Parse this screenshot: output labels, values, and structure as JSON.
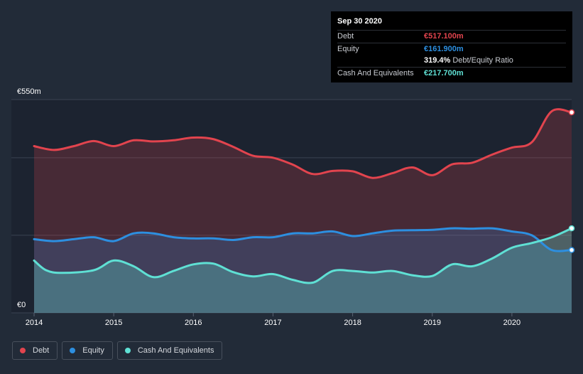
{
  "tooltip": {
    "date": "Sep 30 2020",
    "debt_label": "Debt",
    "debt_value": "€517.100m",
    "equity_label": "Equity",
    "equity_value": "€161.900m",
    "ratio_value": "319.4%",
    "ratio_label": "Debt/Equity Ratio",
    "cash_label": "Cash And Equivalents",
    "cash_value": "€217.700m"
  },
  "legend": [
    {
      "label": "Debt",
      "color": "#e2444e"
    },
    {
      "label": "Equity",
      "color": "#2d8fe0"
    },
    {
      "label": "Cash And Equivalents",
      "color": "#5fe0d4"
    }
  ],
  "chart_data": {
    "type": "area",
    "y_top_label": "€550m",
    "y_bottom_label": "€0",
    "ylim": [
      0,
      550
    ],
    "xlim": [
      2014.0,
      2020.75
    ],
    "x_ticks": [
      "2014",
      "2015",
      "2016",
      "2017",
      "2018",
      "2019",
      "2020"
    ],
    "grid": "horizontal",
    "colors": {
      "debt": "#e2444e",
      "equity": "#2d8fe0",
      "cash": "#5fe0d4"
    },
    "series": [
      {
        "name": "Debt",
        "points": [
          [
            2014.0,
            430
          ],
          [
            2014.25,
            420
          ],
          [
            2014.5,
            430
          ],
          [
            2014.75,
            443
          ],
          [
            2015.0,
            430
          ],
          [
            2015.25,
            445
          ],
          [
            2015.5,
            442
          ],
          [
            2015.75,
            445
          ],
          [
            2016.0,
            452
          ],
          [
            2016.25,
            448
          ],
          [
            2016.5,
            428
          ],
          [
            2016.75,
            405
          ],
          [
            2017.0,
            400
          ],
          [
            2017.25,
            382
          ],
          [
            2017.5,
            358
          ],
          [
            2017.75,
            366
          ],
          [
            2018.0,
            365
          ],
          [
            2018.25,
            348
          ],
          [
            2018.5,
            360
          ],
          [
            2018.75,
            375
          ],
          [
            2019.0,
            355
          ],
          [
            2019.25,
            383
          ],
          [
            2019.5,
            387
          ],
          [
            2019.75,
            408
          ],
          [
            2020.0,
            426
          ],
          [
            2020.25,
            440
          ],
          [
            2020.5,
            520
          ],
          [
            2020.75,
            517
          ]
        ]
      },
      {
        "name": "Equity",
        "points": [
          [
            2014.0,
            190
          ],
          [
            2014.25,
            185
          ],
          [
            2014.5,
            190
          ],
          [
            2014.75,
            195
          ],
          [
            2015.0,
            185
          ],
          [
            2015.25,
            205
          ],
          [
            2015.5,
            205
          ],
          [
            2015.75,
            195
          ],
          [
            2016.0,
            192
          ],
          [
            2016.25,
            192
          ],
          [
            2016.5,
            188
          ],
          [
            2016.75,
            195
          ],
          [
            2017.0,
            195
          ],
          [
            2017.25,
            205
          ],
          [
            2017.5,
            205
          ],
          [
            2017.75,
            210
          ],
          [
            2018.0,
            198
          ],
          [
            2018.25,
            205
          ],
          [
            2018.5,
            212
          ],
          [
            2018.75,
            213
          ],
          [
            2019.0,
            214
          ],
          [
            2019.25,
            218
          ],
          [
            2019.5,
            217
          ],
          [
            2019.75,
            218
          ],
          [
            2020.0,
            210
          ],
          [
            2020.25,
            200
          ],
          [
            2020.5,
            162
          ],
          [
            2020.75,
            162
          ]
        ]
      },
      {
        "name": "Cash And Equivalents",
        "points": [
          [
            2014.0,
            135
          ],
          [
            2014.15,
            110
          ],
          [
            2014.35,
            103
          ],
          [
            2014.75,
            110
          ],
          [
            2015.0,
            135
          ],
          [
            2015.25,
            120
          ],
          [
            2015.5,
            92
          ],
          [
            2015.75,
            108
          ],
          [
            2016.0,
            125
          ],
          [
            2016.25,
            127
          ],
          [
            2016.5,
            105
          ],
          [
            2016.75,
            94
          ],
          [
            2017.0,
            100
          ],
          [
            2017.25,
            85
          ],
          [
            2017.5,
            78
          ],
          [
            2017.75,
            108
          ],
          [
            2018.0,
            108
          ],
          [
            2018.25,
            104
          ],
          [
            2018.5,
            108
          ],
          [
            2018.75,
            97
          ],
          [
            2019.0,
            95
          ],
          [
            2019.25,
            125
          ],
          [
            2019.5,
            120
          ],
          [
            2019.75,
            140
          ],
          [
            2020.0,
            168
          ],
          [
            2020.25,
            180
          ],
          [
            2020.5,
            195
          ],
          [
            2020.75,
            218
          ]
        ]
      }
    ]
  }
}
